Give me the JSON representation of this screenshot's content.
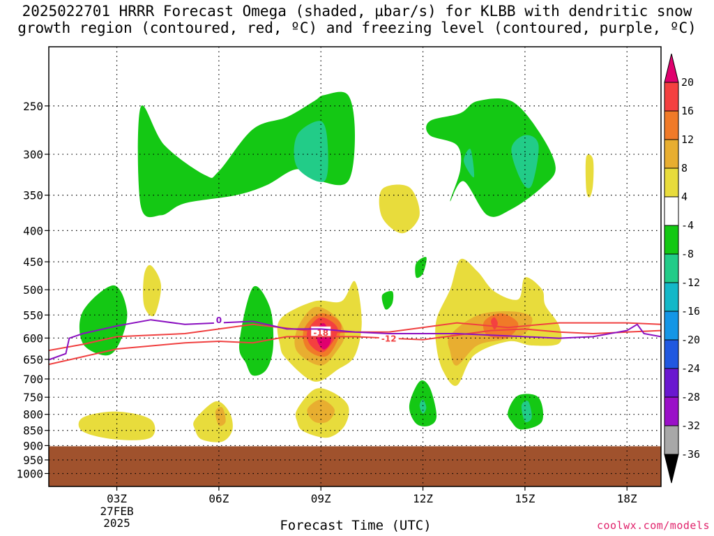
{
  "title": "2025022701 HRRR Forecast Omega (shaded, µbar/s) for KLBB with dendritic snow\ngrowth region (contoured, red, ºC) and freezing level (contoured, purple, ºC)",
  "footer": {
    "xlabel": "Forecast Time (UTC)",
    "credit": "coolwx.com/models"
  },
  "chart_data": {
    "type": "heatmap",
    "title": "2025022701 HRRR Forecast Omega (shaded, µbar/s) for KLBB with dendritic snow growth region (contoured, red, ºC) and freezing level (contoured, purple, ºC)",
    "xlabel": "Forecast Time (UTC)",
    "ylabel": "",
    "x_ticks": [
      {
        "hour": 3,
        "label": "03Z",
        "sublabels": [
          "27FEB",
          "2025"
        ]
      },
      {
        "hour": 6,
        "label": "06Z"
      },
      {
        "hour": 9,
        "label": "09Z"
      },
      {
        "hour": 12,
        "label": "12Z"
      },
      {
        "hour": 15,
        "label": "15Z"
      },
      {
        "hour": 18,
        "label": "18Z"
      }
    ],
    "xlim": [
      1.0,
      19.0
    ],
    "y_ticks": [
      250,
      300,
      350,
      400,
      450,
      500,
      550,
      600,
      650,
      700,
      750,
      800,
      850,
      900,
      950,
      1000
    ],
    "ylim": [
      1050,
      200
    ],
    "y_scale": "log-pressure",
    "grid": "dotted",
    "terrain": {
      "surface_pressure": 900,
      "color": "#a0522d"
    },
    "colorbar": {
      "labels": [
        "20",
        "16",
        "12",
        "8",
        "4",
        "-4",
        "-8",
        "-12",
        "-16",
        "-20",
        "-24",
        "-28",
        "-32",
        "-36"
      ],
      "levels": [
        {
          "color": "#e0006e",
          "shape": "tri-up"
        },
        {
          "color": "#f44040"
        },
        {
          "color": "#f07a28"
        },
        {
          "color": "#e8ae30"
        },
        {
          "color": "#e8dc3c"
        },
        {
          "color": "#ffffff"
        },
        {
          "color": "#14c814"
        },
        {
          "color": "#22cc88"
        },
        {
          "color": "#14b8c8"
        },
        {
          "color": "#1496e6"
        },
        {
          "color": "#2058e0"
        },
        {
          "color": "#6a18d0"
        },
        {
          "color": "#9a10c8"
        },
        {
          "color": "#a8a8a8"
        },
        {
          "color": "#000000",
          "shape": "tri-down"
        }
      ]
    },
    "omega_features": [
      {
        "color": "#14c814",
        "points": [
          [
            3.7,
            1
          ],
          [
            4.4,
            20
          ],
          [
            5.6,
            35
          ],
          [
            6.0,
            33
          ],
          [
            7.0,
            12
          ],
          [
            8.0,
            6
          ],
          [
            8.8,
            -2
          ],
          [
            9.1,
            -5
          ],
          [
            9.8,
            -5
          ],
          [
            10.0,
            15
          ],
          [
            9.8,
            38
          ],
          [
            9.0,
            38
          ],
          [
            8.3,
            32
          ],
          [
            7.4,
            40
          ],
          [
            6.5,
            45
          ],
          [
            5.0,
            49
          ],
          [
            4.3,
            55
          ],
          [
            3.7,
            50
          ]
        ]
      },
      {
        "color": "#22cc88",
        "points": [
          [
            8.3,
            15
          ],
          [
            9.0,
            8
          ],
          [
            9.2,
            20
          ],
          [
            9.1,
            38
          ],
          [
            8.3,
            31
          ]
        ]
      },
      {
        "color": "#14c814",
        "points": [
          [
            13.1,
            4
          ],
          [
            13.6,
            -2
          ],
          [
            14.6,
            -2
          ],
          [
            15.4,
            13
          ],
          [
            15.9,
            31
          ],
          [
            15.5,
            41
          ],
          [
            14.6,
            52
          ],
          [
            13.9,
            55
          ],
          [
            13.2,
            38
          ],
          [
            12.8,
            48
          ],
          [
            13.1,
            32
          ],
          [
            13.0,
            20
          ],
          [
            12.2,
            15
          ],
          [
            12.2,
            8
          ]
        ]
      },
      {
        "color": "#22cc88",
        "points": [
          [
            14.6,
            22
          ],
          [
            15.0,
            15
          ],
          [
            15.4,
            20
          ],
          [
            15.2,
            40
          ],
          [
            14.9,
            38
          ]
        ]
      },
      {
        "color": "#22cc88",
        "points": [
          [
            13.2,
            28
          ],
          [
            13.4,
            22
          ],
          [
            13.5,
            36
          ]
        ]
      },
      {
        "color": "#e8dc3c",
        "points": [
          [
            10.8,
            42
          ],
          [
            11.6,
            41
          ],
          [
            11.9,
            55
          ],
          [
            11.4,
            64
          ],
          [
            10.8,
            56
          ]
        ]
      },
      {
        "color": "#e8dc3c",
        "points": [
          [
            16.8,
            26
          ],
          [
            17.0,
            27
          ],
          [
            17.0,
            40
          ],
          [
            16.9,
            46
          ],
          [
            16.8,
            42
          ]
        ]
      },
      {
        "color": "#14c814",
        "points": [
          [
            11.8,
            79
          ],
          [
            12.1,
            76
          ],
          [
            12.0,
            84
          ],
          [
            11.8,
            86
          ]
        ]
      },
      {
        "color": "#14c814",
        "points": [
          [
            10.8,
            95
          ],
          [
            11.1,
            93
          ],
          [
            11.1,
            99
          ],
          [
            10.9,
            102
          ]
        ]
      },
      {
        "color": "#e8dc3c",
        "points": [
          [
            3.8,
            85
          ],
          [
            4.0,
            80
          ],
          [
            4.3,
            90
          ],
          [
            4.1,
            105
          ],
          [
            3.8,
            100
          ]
        ]
      },
      {
        "color": "#14c814",
        "points": [
          [
            2.0,
            103
          ],
          [
            2.9,
            90
          ],
          [
            3.3,
            103
          ],
          [
            3.1,
            118
          ],
          [
            2.7,
            125
          ],
          [
            2.0,
            119
          ]
        ]
      },
      {
        "color": "#14c814",
        "points": [
          [
            6.6,
            119
          ],
          [
            7.0,
            91
          ],
          [
            7.5,
            101
          ],
          [
            7.6,
            120
          ],
          [
            7.4,
            132
          ],
          [
            7.0,
            135
          ],
          [
            6.8,
            129
          ]
        ]
      },
      {
        "color": "#e8dc3c",
        "points": [
          [
            7.8,
            107
          ],
          [
            8.8,
            98
          ],
          [
            9.6,
            98
          ],
          [
            10.0,
            88
          ],
          [
            10.2,
            108
          ],
          [
            10.0,
            125
          ],
          [
            9.5,
            132
          ],
          [
            8.8,
            138
          ],
          [
            8.0,
            127
          ],
          [
            7.8,
            120
          ]
        ]
      },
      {
        "color": "#e8ae30",
        "points": [
          [
            8.3,
            112
          ],
          [
            8.8,
            101
          ],
          [
            9.4,
            105
          ],
          [
            9.7,
            114
          ],
          [
            9.5,
            122
          ],
          [
            9.0,
            130
          ],
          [
            8.3,
            123
          ]
        ]
      },
      {
        "color": "#f07a28",
        "points": [
          [
            8.5,
            112
          ],
          [
            9.0,
            104
          ],
          [
            9.6,
            110
          ],
          [
            9.2,
            125
          ],
          [
            8.6,
            122
          ]
        ]
      },
      {
        "color": "#f44040",
        "points": [
          [
            8.6,
            113
          ],
          [
            9.0,
            106
          ],
          [
            9.5,
            112
          ],
          [
            9.1,
            123
          ],
          [
            8.7,
            120
          ]
        ]
      },
      {
        "color": "#e0006e",
        "points": [
          [
            8.9,
            112
          ],
          [
            9.1,
            109
          ],
          [
            9.3,
            117
          ],
          [
            9.1,
            122
          ],
          [
            8.9,
            118
          ]
        ]
      },
      {
        "color": "#e8dc3c",
        "points": [
          [
            12.4,
            107
          ],
          [
            12.8,
            92
          ],
          [
            13.1,
            77
          ],
          [
            13.6,
            83
          ],
          [
            14.1,
            93
          ],
          [
            14.8,
            97
          ],
          [
            15.0,
            86
          ],
          [
            15.5,
            92
          ],
          [
            15.6,
            100
          ],
          [
            16.0,
            110
          ],
          [
            16.0,
            119
          ],
          [
            15.2,
            120
          ],
          [
            14.5,
            118
          ],
          [
            13.5,
            125
          ],
          [
            13.0,
            140
          ],
          [
            12.6,
            133
          ],
          [
            12.4,
            121
          ]
        ]
      },
      {
        "color": "#e8ae30",
        "points": [
          [
            12.8,
            115
          ],
          [
            13.6,
            105
          ],
          [
            14.6,
            103
          ],
          [
            15.2,
            106
          ],
          [
            15.0,
            114
          ],
          [
            14.4,
            117
          ],
          [
            13.6,
            120
          ],
          [
            13.0,
            130
          ],
          [
            12.8,
            123
          ]
        ]
      },
      {
        "color": "#f07a28",
        "points": [
          [
            13.8,
            108
          ],
          [
            14.3,
            104
          ],
          [
            14.8,
            109
          ],
          [
            14.5,
            116
          ],
          [
            13.9,
            115
          ]
        ]
      },
      {
        "color": "#f44040",
        "points": [
          [
            14.0,
            108
          ],
          [
            14.1,
            106
          ],
          [
            14.2,
            109
          ],
          [
            14.1,
            112
          ]
        ]
      },
      {
        "color": "#e8dc3c",
        "points": [
          [
            2.0,
            156
          ],
          [
            3.0,
            153
          ],
          [
            4.0,
            157
          ],
          [
            4.0,
            166
          ],
          [
            3.0,
            167
          ],
          [
            2.0,
            163
          ]
        ]
      },
      {
        "color": "#e8dc3c",
        "points": [
          [
            5.3,
            157
          ],
          [
            5.9,
            148
          ],
          [
            6.3,
            153
          ],
          [
            6.4,
            162
          ],
          [
            6.1,
            168
          ],
          [
            5.5,
            167
          ],
          [
            5.3,
            162
          ]
        ]
      },
      {
        "color": "#e8ae30",
        "points": [
          [
            5.9,
            153
          ],
          [
            6.1,
            151
          ],
          [
            6.2,
            158
          ],
          [
            6.0,
            160
          ]
        ]
      },
      {
        "color": "#e8dc3c",
        "points": [
          [
            8.3,
            152
          ],
          [
            8.8,
            142
          ],
          [
            9.3,
            143
          ],
          [
            9.8,
            150
          ],
          [
            9.7,
            160
          ],
          [
            9.2,
            166
          ],
          [
            8.5,
            163
          ],
          [
            8.3,
            158
          ]
        ]
      },
      {
        "color": "#e8ae30",
        "points": [
          [
            8.6,
            152
          ],
          [
            9.0,
            147
          ],
          [
            9.4,
            152
          ],
          [
            9.2,
            158
          ],
          [
            8.8,
            158
          ]
        ]
      },
      {
        "color": "#14c814",
        "points": [
          [
            11.6,
            150
          ],
          [
            11.9,
            138
          ],
          [
            12.2,
            141
          ],
          [
            12.4,
            155
          ],
          [
            12.2,
            160
          ],
          [
            11.8,
            159
          ]
        ]
      },
      {
        "color": "#22cc88",
        "points": [
          [
            11.9,
            150
          ],
          [
            12.0,
            147
          ],
          [
            12.1,
            151
          ],
          [
            12.0,
            154
          ]
        ]
      },
      {
        "color": "#14c814",
        "points": [
          [
            14.5,
            153
          ],
          [
            14.8,
            145
          ],
          [
            15.4,
            146
          ],
          [
            15.5,
            158
          ],
          [
            14.9,
            162
          ],
          [
            14.6,
            158
          ]
        ]
      },
      {
        "color": "#22cc88",
        "points": [
          [
            14.9,
            150
          ],
          [
            15.1,
            148
          ],
          [
            15.2,
            156
          ],
          [
            15.0,
            158
          ]
        ]
      }
    ],
    "dendritic_contours": [
      {
        "label": "-18",
        "label_at": [
          9.0,
          -8
        ],
        "points": [
          [
            1.0,
            -20
          ],
          [
            2.0,
            -16
          ],
          [
            3.0,
            -11
          ],
          [
            5.0,
            -9
          ],
          [
            6.0,
            -6
          ],
          [
            7.0,
            -3
          ],
          [
            9.0,
            -8
          ],
          [
            11.0,
            -8
          ],
          [
            12.0,
            -5
          ],
          [
            13.0,
            -2
          ],
          [
            14.0,
            -4
          ],
          [
            14.5,
            -5
          ],
          [
            15.0,
            -4
          ],
          [
            16.0,
            -2
          ],
          [
            17.0,
            -2
          ],
          [
            18.0,
            -2
          ],
          [
            19.0,
            -3
          ]
        ]
      },
      {
        "label": "-12",
        "label_at": [
          11.0,
          -12
        ],
        "points": [
          [
            1.0,
            -29
          ],
          [
            2.0,
            -24
          ],
          [
            3.0,
            -19
          ],
          [
            4.0,
            -17
          ],
          [
            5.0,
            -15
          ],
          [
            6.0,
            -14
          ],
          [
            7.0,
            -15
          ],
          [
            8.0,
            -11
          ],
          [
            9.0,
            -11
          ],
          [
            10.0,
            -11
          ],
          [
            11.0,
            -12
          ],
          [
            12.0,
            -13
          ],
          [
            13.0,
            -10
          ],
          [
            14.0,
            -7
          ],
          [
            15.0,
            -6
          ],
          [
            16.0,
            -8
          ],
          [
            17.0,
            -9
          ],
          [
            18.0,
            -8
          ],
          [
            19.0,
            -7
          ]
        ]
      }
    ],
    "freezing_level": {
      "label": "0",
      "label_at": [
        6.0,
        0
      ],
      "points": [
        [
          1.0,
          -26
        ],
        [
          1.5,
          -22
        ],
        [
          1.6,
          -12
        ],
        [
          2.0,
          -9
        ],
        [
          3.0,
          -4
        ],
        [
          4.0,
          0
        ],
        [
          5.0,
          -3
        ],
        [
          6.0,
          -2
        ],
        [
          7.0,
          -1
        ],
        [
          8.0,
          -6
        ],
        [
          9.0,
          -6
        ],
        [
          10.0,
          -8
        ],
        [
          11.0,
          -9
        ],
        [
          12.0,
          -9
        ],
        [
          13.0,
          -9
        ],
        [
          14.0,
          -10
        ],
        [
          15.0,
          -11
        ],
        [
          16.0,
          -12
        ],
        [
          17.0,
          -11
        ],
        [
          18.0,
          -7
        ],
        [
          18.3,
          -3
        ],
        [
          18.5,
          -9
        ],
        [
          19.0,
          -11
        ]
      ]
    }
  }
}
